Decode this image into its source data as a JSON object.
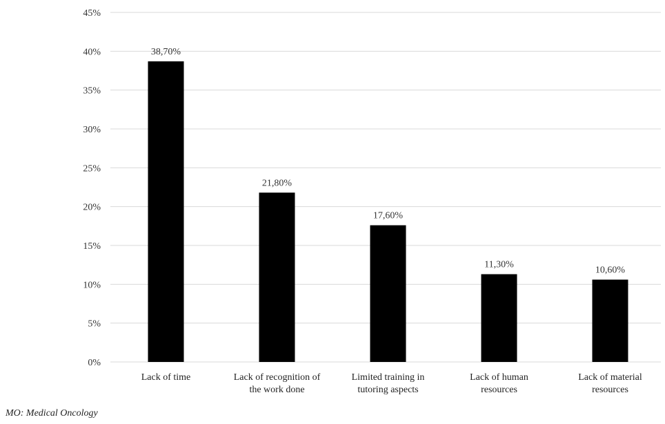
{
  "chart_data": {
    "type": "bar",
    "title": "",
    "xlabel": "",
    "ylabel": "",
    "categories": [
      [
        "Lack of time"
      ],
      [
        "Lack of recognition of",
        "the work done"
      ],
      [
        "Limited training in",
        "tutoring aspects"
      ],
      [
        "Lack of human",
        "resources"
      ],
      [
        "Lack of material",
        "resources"
      ]
    ],
    "values": [
      38.7,
      21.8,
      17.6,
      11.3,
      10.6
    ],
    "value_labels": [
      "38,70%",
      "21,80%",
      "17,60%",
      "11,30%",
      "10,60%"
    ],
    "ylim": [
      0,
      45
    ],
    "y_ticks": [
      0,
      5,
      10,
      15,
      20,
      25,
      30,
      35,
      40,
      45
    ],
    "y_tick_labels": [
      "0%",
      "5%",
      "10%",
      "15%",
      "20%",
      "25%",
      "30%",
      "35%",
      "40%",
      "45%"
    ],
    "grid": true,
    "legend": "none",
    "bar_color": "#000000",
    "grid_color": "#d9d9d9"
  },
  "footnote": "MO: Medical Oncology"
}
